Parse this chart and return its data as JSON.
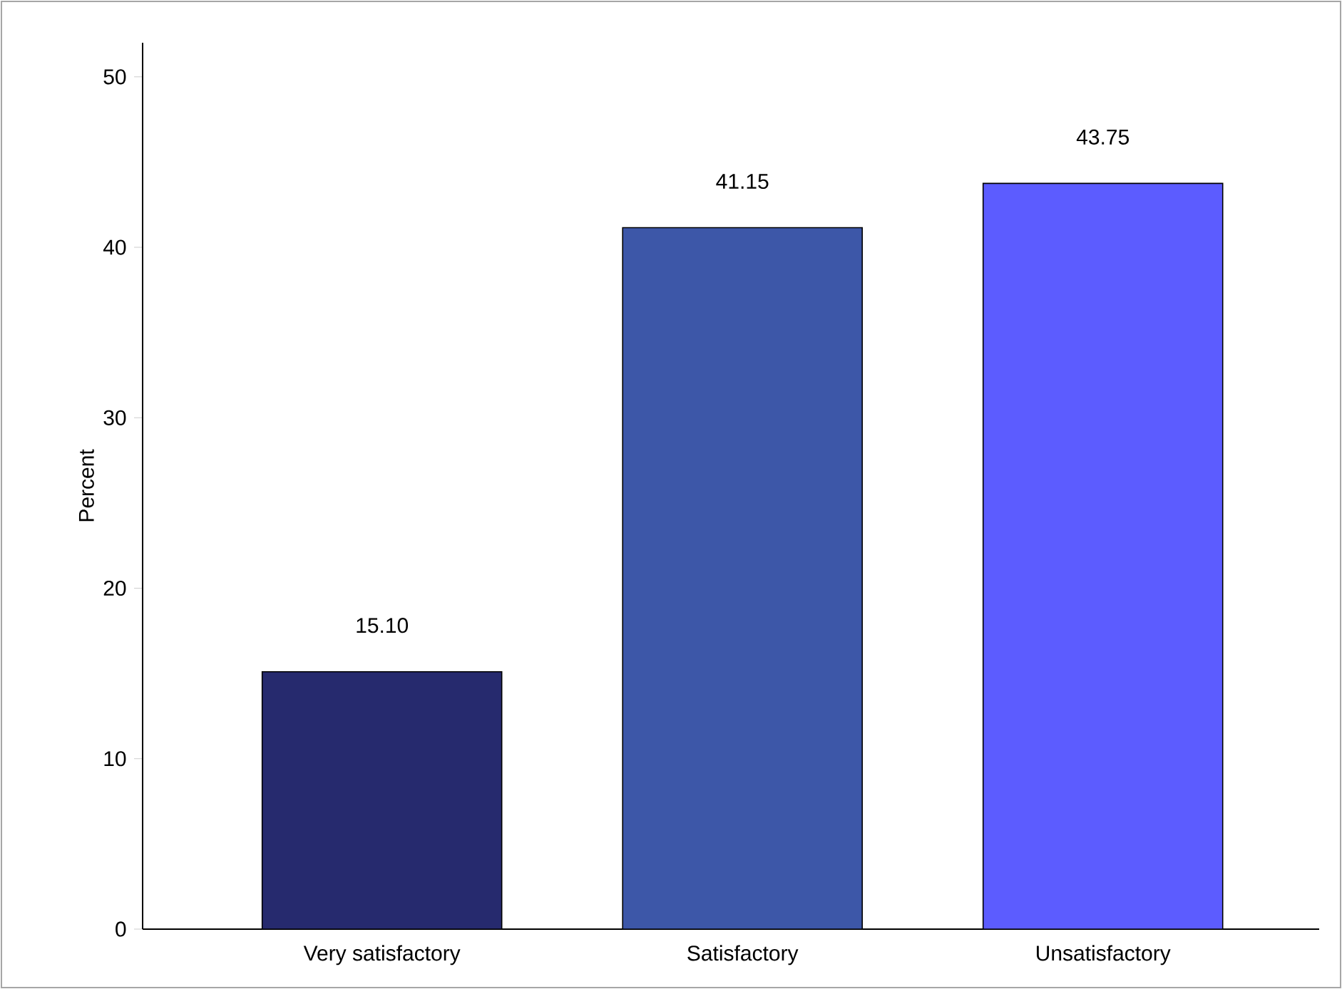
{
  "chart_data": {
    "type": "bar",
    "ylabel": "Percent",
    "categories": [
      "Very satisfactory",
      "Satisfactory",
      "Unsatisfactory"
    ],
    "values": [
      15.1,
      41.15,
      43.75
    ],
    "value_labels": [
      "15.10",
      "41.15",
      "43.75"
    ],
    "colors": [
      "#262a6e",
      "#3d57a8",
      "#5c5cff"
    ],
    "ylim": [
      0,
      52
    ],
    "yticks": [
      0,
      10,
      20,
      30,
      40,
      50
    ]
  }
}
